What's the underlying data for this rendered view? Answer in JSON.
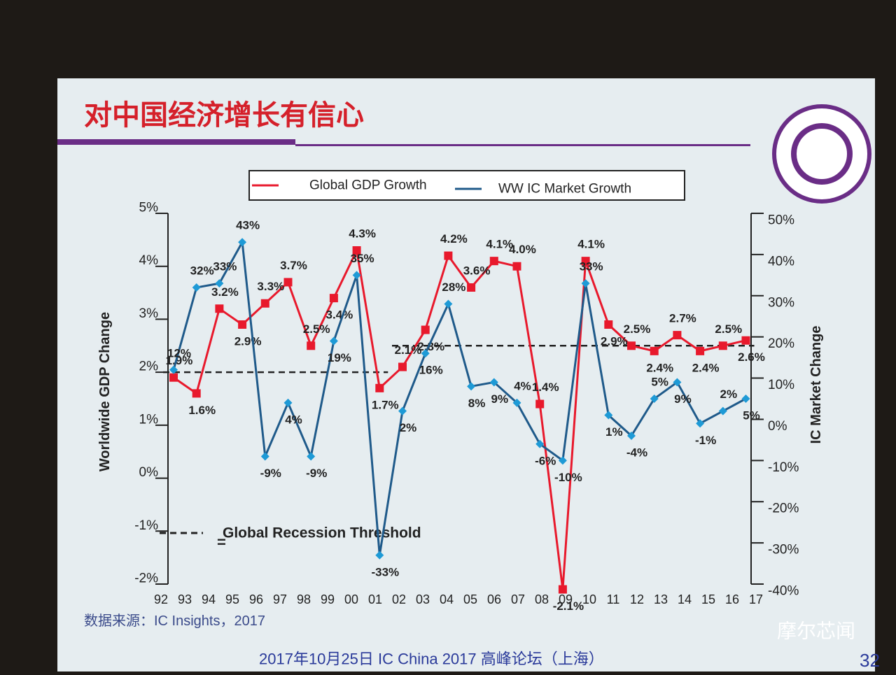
{
  "header": {
    "title": "对中国经济增长有信心"
  },
  "chart_data": {
    "type": "line",
    "categories": [
      "92",
      "93",
      "94",
      "95",
      "96",
      "97",
      "98",
      "99",
      "00",
      "01",
      "02",
      "03",
      "04",
      "05",
      "06",
      "07",
      "08",
      "09",
      "10",
      "11",
      "12",
      "13",
      "14",
      "15",
      "16",
      "17"
    ],
    "y_label": "Worldwide GDP Change",
    "y2_label": "IC Market Change",
    "ylim": [
      -2,
      5
    ],
    "yticks": [
      {
        "value": -2,
        "label": "-2%"
      },
      {
        "value": -1,
        "label": "-1%"
      },
      {
        "value": 0,
        "label": "0%"
      },
      {
        "value": 1,
        "label": "1%"
      },
      {
        "value": 2,
        "label": "2%"
      },
      {
        "value": 3,
        "label": "3%"
      },
      {
        "value": 4,
        "label": "4%"
      },
      {
        "value": 5,
        "label": "5%"
      }
    ],
    "y2lim": [
      -40,
      50
    ],
    "y2ticks": [
      {
        "value": -40,
        "label": "-40%"
      },
      {
        "value": -30,
        "label": "-30%"
      },
      {
        "value": -20,
        "label": "-20%"
      },
      {
        "value": -10,
        "label": "-10%"
      },
      {
        "value": 0,
        "label": "0%"
      },
      {
        "value": 10,
        "label": "10%"
      },
      {
        "value": 20,
        "label": "20%"
      },
      {
        "value": 30,
        "label": "30%"
      },
      {
        "value": 40,
        "label": "40%"
      },
      {
        "value": 50,
        "label": "50%"
      }
    ],
    "series": [
      {
        "name": "Global GDP Growth",
        "color": "#e8192c",
        "marker": "square",
        "values": [
          1.9,
          1.6,
          3.2,
          2.9,
          3.3,
          3.7,
          2.5,
          3.4,
          4.3,
          1.7,
          2.1,
          2.8,
          4.2,
          3.6,
          4.1,
          4.0,
          1.4,
          -2.1,
          4.1,
          2.9,
          2.5,
          2.4,
          2.7,
          2.4,
          2.5,
          2.6
        ],
        "value_labels": [
          "1.9%",
          "1.6%",
          "3.2%",
          "2.9%",
          "3.3%",
          "3.7%",
          "2.5%",
          "3.4%",
          "4.3%",
          "1.7%",
          "2.1%",
          "2.8%",
          "4.2%",
          "3.6%",
          "4.1%",
          "4.0%",
          "1.4%",
          "-2.1%",
          "4.1%",
          "2.9%",
          "2.5%",
          "2.4%",
          "2.7%",
          "2.4%",
          "2.5%",
          "2.6%"
        ]
      },
      {
        "name": "WW IC Market Growth",
        "color": "#1f5a8a",
        "marker": "diamond",
        "axis": "y2",
        "values": [
          12,
          32,
          33,
          43,
          -9,
          4,
          -9,
          19,
          35,
          -33,
          2,
          16,
          28,
          8,
          9,
          4,
          -6,
          -10,
          33,
          1,
          -4,
          5,
          9,
          -1,
          2,
          5
        ],
        "value_labels": [
          "12%",
          "32%",
          "33%",
          "43%",
          "-9%",
          "4%",
          "-9%",
          "19%",
          "35%",
          "-33%",
          "2%",
          "16%",
          "28%",
          "8%",
          "9%",
          "4%",
          "-6%",
          "-10%",
          "33%",
          "1%",
          "-4%",
          "5%",
          "9%",
          "-1%",
          "2%",
          "5%"
        ]
      }
    ],
    "threshold": {
      "label": "Global Recession Threshold",
      "symbol": "=",
      "segments": [
        {
          "from": 0,
          "to": 9,
          "value": 2
        },
        {
          "from": 10,
          "to": 25,
          "value": 2.5
        }
      ]
    }
  },
  "source": "数据来源：IC Insights，2017",
  "footer": "2017年10月25日 IC China 2017 高峰论坛（上海）",
  "page_number": "32",
  "watermark": "摩尔芯闻"
}
